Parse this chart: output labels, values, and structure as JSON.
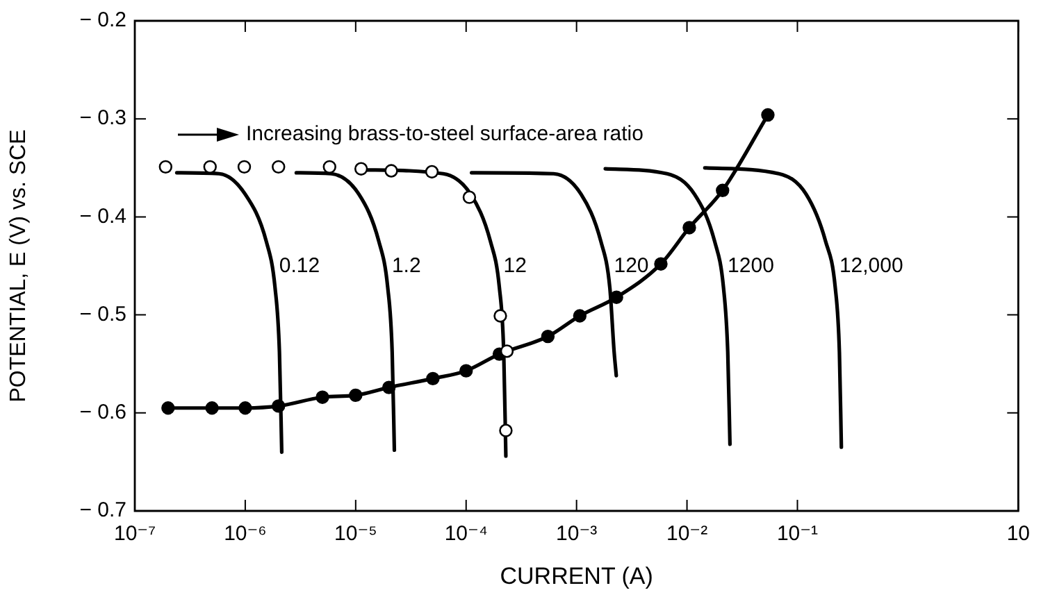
{
  "chart_data": {
    "type": "line",
    "xlabel": "CURRENT (A)",
    "ylabel": "POTENTIAL, E (V) vs. SCE",
    "log": "x",
    "grid": false,
    "legend": false,
    "line_style": "solid",
    "xlim": [
      1e-07,
      10
    ],
    "ylim": [
      -0.7,
      -0.2
    ],
    "xticks": [
      {
        "value": 1e-07,
        "label": "10⁻⁷"
      },
      {
        "value": 1e-06,
        "label": "10⁻⁶"
      },
      {
        "value": 1e-05,
        "label": "10⁻⁵"
      },
      {
        "value": 0.0001,
        "label": "10⁻⁴"
      },
      {
        "value": 0.001,
        "label": "10⁻³"
      },
      {
        "value": 0.01,
        "label": "10⁻²"
      },
      {
        "value": 0.1,
        "label": "10⁻¹"
      },
      10
    ],
    "yticks": [
      {
        "value": -0.7,
        "label": "− 0.7"
      },
      {
        "value": -0.6,
        "label": "− 0.6"
      },
      {
        "value": -0.5,
        "label": "− 0.5"
      },
      {
        "value": -0.4,
        "label": "− 0.4"
      },
      {
        "value": -0.3,
        "label": "− 0.3"
      },
      {
        "value": -0.2,
        "label": "− 0.2"
      }
    ],
    "series": [
      {
        "type": "line",
        "name": "0.12",
        "marker": "none",
        "color": "#000000",
        "x": [
          2.4e-07,
          5.8e-07,
          1e-06,
          1.55e-06,
          1.86e-06,
          2.04e-06,
          2.14e-06
        ],
        "values": [
          -0.355,
          -0.356,
          -0.377,
          -0.425,
          -0.472,
          -0.538,
          -0.64
        ]
      },
      {
        "type": "line",
        "name": "1.2",
        "marker": "none",
        "color": "#000000",
        "x": [
          2.9e-06,
          6e-06,
          1.07e-05,
          1.62e-05,
          1.95e-05,
          2.14e-05,
          2.24e-05
        ],
        "values": [
          -0.355,
          -0.356,
          -0.377,
          -0.425,
          -0.472,
          -0.538,
          -0.638
        ]
      },
      {
        "type": "line",
        "name": "12",
        "marker": "none",
        "color": "#000000",
        "x": [
          1.12e-05,
          6.2e-05,
          0.00011,
          0.000166,
          0.0002,
          0.000219,
          0.000229
        ],
        "values": [
          -0.352,
          -0.356,
          -0.377,
          -0.425,
          -0.472,
          -0.538,
          -0.644
        ]
      },
      {
        "type": "line",
        "name": "120",
        "marker": "none",
        "color": "#000000",
        "x": [
          0.000112,
          0.00062,
          0.0011,
          0.00166,
          0.002,
          0.00219,
          0.00229
        ],
        "values": [
          -0.355,
          -0.356,
          -0.377,
          -0.425,
          -0.472,
          -0.538,
          -0.562
        ]
      },
      {
        "type": "line",
        "name": "1200",
        "marker": "none",
        "color": "#000000",
        "x": [
          0.00182,
          0.0066,
          0.0117,
          0.0178,
          0.0214,
          0.0234,
          0.0245
        ],
        "values": [
          -0.351,
          -0.356,
          -0.377,
          -0.425,
          -0.472,
          -0.538,
          -0.632
        ]
      },
      {
        "type": "line",
        "name": "12,000",
        "marker": "none",
        "color": "#000000",
        "x": [
          0.0145,
          0.068,
          0.12,
          0.18,
          0.22,
          0.24,
          0.25
        ],
        "values": [
          -0.35,
          -0.356,
          -0.377,
          -0.425,
          -0.472,
          -0.538,
          -0.635
        ]
      },
      {
        "type": "line",
        "marker": "circle",
        "color": "#000000",
        "x": [
          2e-07,
          5e-07,
          1e-06,
          2e-06,
          5e-06,
          1e-05,
          2e-05,
          5e-05,
          0.0001,
          0.0002,
          0.00055,
          0.00107,
          0.0023,
          0.0058,
          0.0105,
          0.021,
          0.054
        ],
        "values": [
          -0.595,
          -0.595,
          -0.595,
          -0.593,
          -0.584,
          -0.582,
          -0.574,
          -0.565,
          -0.557,
          -0.54,
          -0.522,
          -0.501,
          -0.482,
          -0.448,
          -0.411,
          -0.373,
          -0.296
        ]
      },
      {
        "type": "scatter",
        "marker": "circle",
        "color": "#ffffff",
        "x": [
          1.9e-07,
          4.8e-07,
          9.8e-07,
          2e-06,
          5.8e-06,
          1.12e-05,
          2.1e-05,
          4.9e-05,
          0.000107,
          0.000204,
          0.000234,
          0.000229
        ],
        "values": [
          -0.349,
          -0.349,
          -0.349,
          -0.349,
          -0.349,
          -0.351,
          -0.353,
          -0.354,
          -0.38,
          -0.501,
          -0.537,
          -0.618
        ]
      }
    ],
    "annotations": [
      "Increasing brass-to-steel surface-area ratio"
    ]
  }
}
